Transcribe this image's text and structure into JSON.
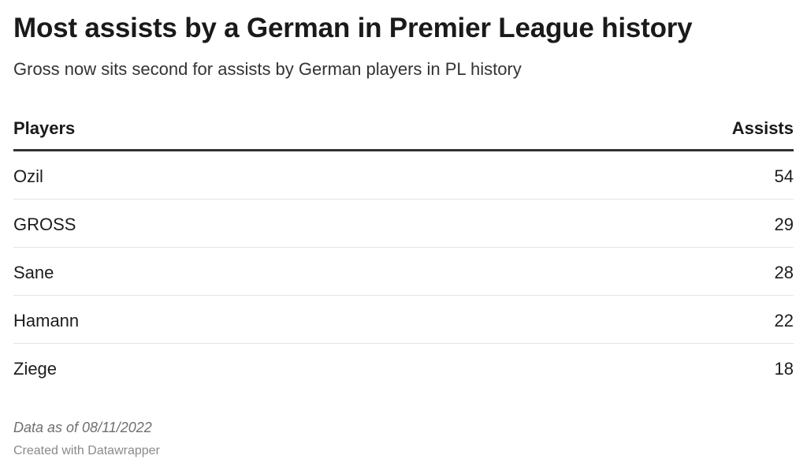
{
  "header": {
    "title": "Most assists by a German in Premier League history",
    "subtitle": "Gross now sits second for assists by German players in PL history"
  },
  "chart_data": {
    "type": "table",
    "title": "Most assists by a German in Premier League history",
    "subtitle": "Gross now sits second for assists by German players in PL history",
    "columns": [
      "Players",
      "Assists"
    ],
    "rows": [
      {
        "player": "Ozil",
        "assists": 54
      },
      {
        "player": "GROSS",
        "assists": 29
      },
      {
        "player": "Sane",
        "assists": 28
      },
      {
        "player": "Hamann",
        "assists": 22
      },
      {
        "player": "Ziege",
        "assists": 18
      }
    ]
  },
  "footer": {
    "note": "Data as of 08/11/2022",
    "credit": "Created with Datawrapper"
  }
}
